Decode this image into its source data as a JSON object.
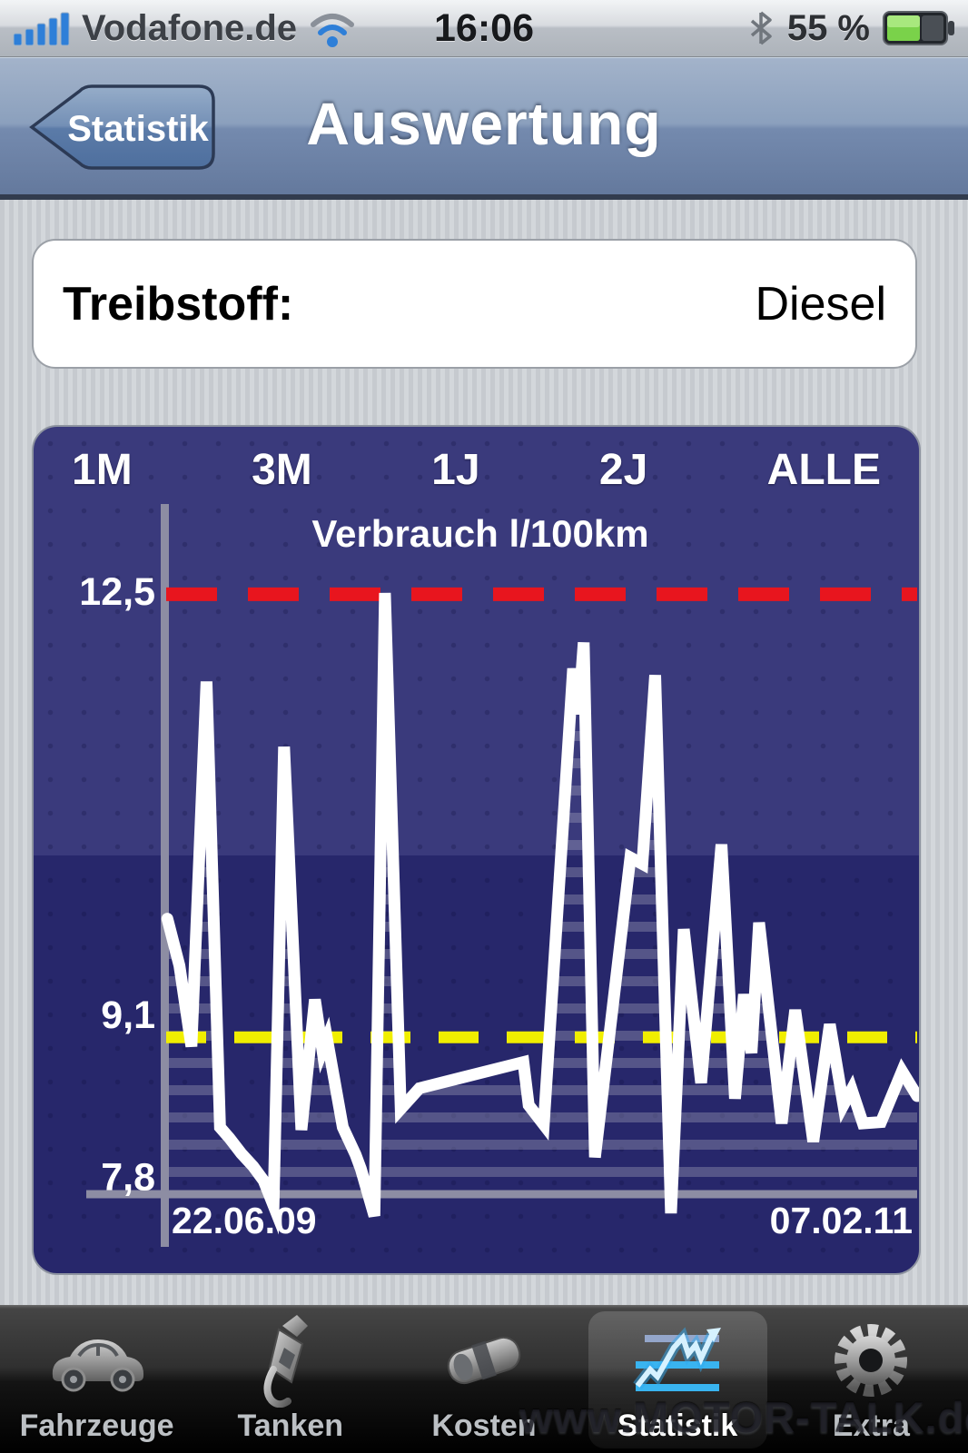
{
  "status_bar": {
    "carrier": "Vodafone.de",
    "time": "16:06",
    "battery_percent": "55 %",
    "icons": [
      "signal-bars-icon",
      "wifi-icon",
      "bluetooth-icon",
      "battery-icon"
    ]
  },
  "nav_bar": {
    "back_label": "Statistik",
    "title": "Auswertung"
  },
  "fuel_card": {
    "label": "Treibstoff:",
    "value": "Diesel"
  },
  "chart_card": {
    "range_tabs": [
      "1M",
      "3M",
      "1J",
      "2J",
      "ALLE"
    ],
    "title": "Verbrauch l/100km",
    "start_date": "22.06.09",
    "end_date": "07.02.11"
  },
  "chart_data": {
    "type": "line",
    "title": "Verbrauch l/100km",
    "ylabel": "l/100km",
    "x_start_label": "22.06.09",
    "x_end_label": "07.02.11",
    "ylim": [
      7.3,
      13.1
    ],
    "grid": false,
    "legend": false,
    "y_ticks": [
      {
        "label": "12,5",
        "value": 12.5
      },
      {
        "label": "9,1",
        "value": 9.1
      },
      {
        "label": "7,8",
        "value": 7.8
      }
    ],
    "reference_lines": [
      {
        "name": "max-line",
        "value": 12.47,
        "style": "dashed",
        "color": "#e8151e",
        "width": 15,
        "dash": "56 34"
      },
      {
        "name": "average-line",
        "value": 9.07,
        "style": "dashed",
        "color": "#f0ee00",
        "width": 13,
        "dash": "44 31"
      },
      {
        "name": "baseline-axis",
        "value": 7.87,
        "style": "solid",
        "color": "#8d8da3",
        "width": 9,
        "dash": ""
      }
    ],
    "series": [
      {
        "name": "Verbrauch l/100km",
        "color": "#ffffff",
        "fill": "striped",
        "points": [
          [
            0.004,
            9.98
          ],
          [
            0.02,
            9.62
          ],
          [
            0.036,
            9.0
          ],
          [
            0.056,
            11.8
          ],
          [
            0.074,
            8.38
          ],
          [
            0.086,
            8.3
          ],
          [
            0.102,
            8.18
          ],
          [
            0.118,
            8.08
          ],
          [
            0.132,
            7.97
          ],
          [
            0.145,
            7.78
          ],
          [
            0.159,
            11.3
          ],
          [
            0.182,
            8.36
          ],
          [
            0.2,
            9.36
          ],
          [
            0.21,
            8.97
          ],
          [
            0.216,
            9.06
          ],
          [
            0.237,
            8.38
          ],
          [
            0.254,
            8.17
          ],
          [
            0.261,
            8.06
          ],
          [
            0.279,
            7.7
          ],
          [
            0.293,
            12.48
          ],
          [
            0.314,
            8.52
          ],
          [
            0.339,
            8.68
          ],
          [
            0.477,
            8.88
          ],
          [
            0.484,
            8.55
          ],
          [
            0.504,
            8.4
          ],
          [
            0.543,
            11.9
          ],
          [
            0.55,
            11.55
          ],
          [
            0.557,
            12.1
          ],
          [
            0.572,
            8.15
          ],
          [
            0.619,
            10.45
          ],
          [
            0.635,
            10.4
          ],
          [
            0.652,
            11.85
          ],
          [
            0.673,
            7.72
          ],
          [
            0.69,
            9.9
          ],
          [
            0.713,
            8.72
          ],
          [
            0.74,
            10.55
          ],
          [
            0.758,
            8.6
          ],
          [
            0.77,
            9.4
          ],
          [
            0.78,
            8.95
          ],
          [
            0.79,
            9.95
          ],
          [
            0.82,
            8.41
          ],
          [
            0.838,
            9.28
          ],
          [
            0.862,
            8.27
          ],
          [
            0.884,
            9.17
          ],
          [
            0.902,
            8.55
          ],
          [
            0.913,
            8.67
          ],
          [
            0.928,
            8.41
          ],
          [
            0.952,
            8.42
          ],
          [
            0.98,
            8.81
          ],
          [
            1.0,
            8.62
          ]
        ]
      }
    ]
  },
  "tab_bar": {
    "items": [
      {
        "label": "Fahrzeuge",
        "icon": "car-icon",
        "active": false
      },
      {
        "label": "Tanken",
        "icon": "fuel-pump-icon",
        "active": false
      },
      {
        "label": "Kosten",
        "icon": "money-icon",
        "active": false
      },
      {
        "label": "Statistik",
        "icon": "chart-icon",
        "active": true
      },
      {
        "label": "Extra",
        "icon": "gear-icon",
        "active": false
      }
    ]
  },
  "watermark": "www.MOTOR-TALK.de",
  "colors": {
    "chart_bg_upper": "#3a3a7c",
    "chart_bg_lower": "#27276b",
    "axis_gray": "#8d8da3",
    "max_line_red": "#e8151e",
    "average_line_yellow": "#f0ee00",
    "series_white": "#ffffff",
    "nav_blue_top": "#a3b3ca",
    "nav_blue_bottom": "#64799d",
    "battery_green": "#7ad24a",
    "statistik_icon_blue": "#39b4f0"
  }
}
